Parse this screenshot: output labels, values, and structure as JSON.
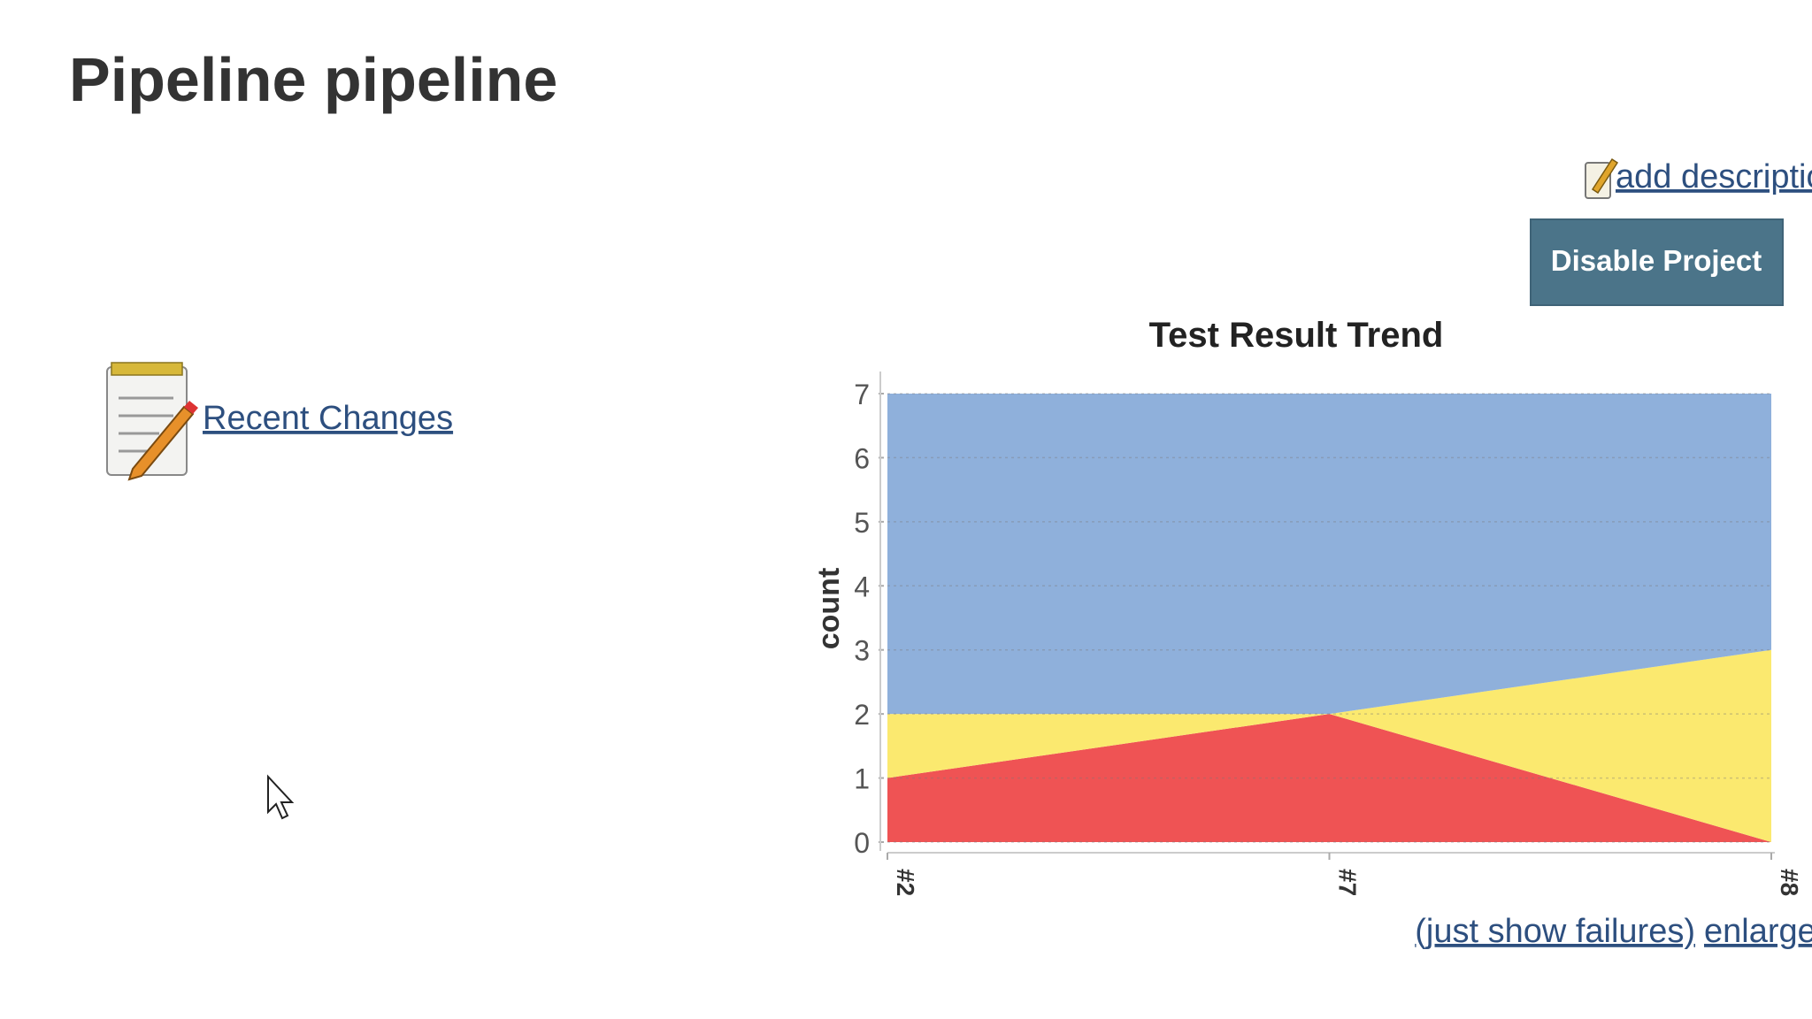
{
  "header": {
    "title": "Pipeline pipeline",
    "add_description": "add description",
    "disable_button": "Disable Project"
  },
  "sidebar": {
    "recent_changes": "Recent Changes"
  },
  "chart_data": {
    "type": "area",
    "stacked": true,
    "title": "Test Result Trend",
    "y_label": "count",
    "categories": [
      "#2",
      "#7",
      "#8"
    ],
    "series": [
      {
        "color": "#ef5354",
        "values": [
          1,
          2,
          0
        ]
      },
      {
        "color": "#fbe96f",
        "values": [
          1,
          0,
          3
        ]
      },
      {
        "color": "#8fb0db",
        "values": [
          5,
          5,
          4
        ]
      }
    ],
    "ylim": [
      0,
      7
    ],
    "yticks": [
      0,
      1,
      2,
      3,
      4,
      5,
      6,
      7
    ],
    "grid": true
  },
  "chart_links": {
    "just_show_failures": "(just show failures)",
    "enlarge": "enlarge"
  }
}
